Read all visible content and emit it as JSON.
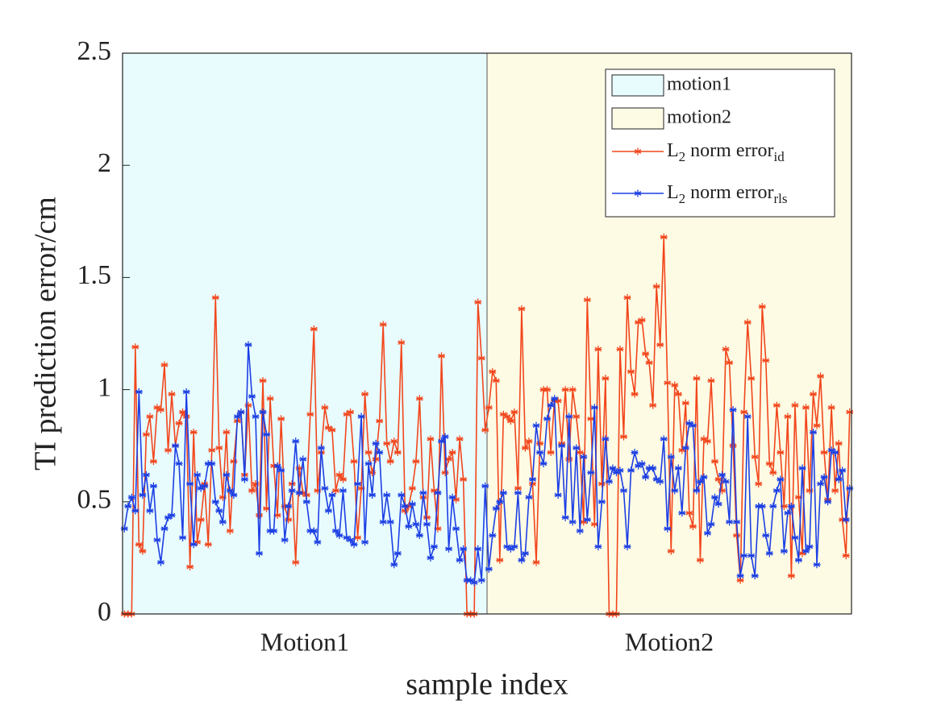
{
  "chart_data": {
    "type": "line",
    "ylabel": "TI prediction error/cm",
    "xlabel": "sample index",
    "x": [
      1,
      2,
      3,
      4,
      5,
      6,
      7,
      8,
      9,
      10,
      11,
      12,
      13,
      14,
      15,
      16,
      17,
      18,
      19,
      20,
      21,
      22,
      23,
      24,
      25,
      26,
      27,
      28,
      29,
      30,
      31,
      32,
      33,
      34,
      35,
      36,
      37,
      38,
      39,
      40,
      41,
      42,
      43,
      44,
      45,
      46,
      47,
      48,
      49,
      50,
      51,
      52,
      53,
      54,
      55,
      56,
      57,
      58,
      59,
      60,
      61,
      62,
      63,
      64,
      65,
      66,
      67,
      68,
      69,
      70,
      71,
      72,
      73,
      74,
      75,
      76,
      77,
      78,
      79,
      80,
      81,
      82,
      83,
      84,
      85,
      86,
      87,
      88,
      89,
      90,
      91,
      92,
      93,
      94,
      95,
      96,
      97,
      98,
      99,
      100,
      101,
      102,
      103,
      104,
      105,
      106,
      107,
      108,
      109,
      110,
      111,
      112,
      113,
      114,
      115,
      116,
      117,
      118,
      119,
      120,
      121,
      122,
      123,
      124,
      125,
      126,
      127,
      128,
      129,
      130,
      131,
      132,
      133,
      134,
      135,
      136,
      137,
      138,
      139,
      140,
      141,
      142,
      143,
      144,
      145,
      146,
      147,
      148,
      149,
      150,
      151,
      152,
      153,
      154,
      155,
      156,
      157,
      158,
      159,
      160,
      161,
      162,
      163,
      164,
      165,
      166,
      167,
      168,
      169,
      170,
      171,
      172,
      173,
      174,
      175,
      176,
      177,
      178,
      179,
      180,
      181,
      182,
      183,
      184,
      185,
      186,
      187,
      188,
      189,
      190,
      191,
      192,
      193,
      194,
      195,
      196,
      197,
      198,
      199,
      200
    ],
    "xlim": [
      0.5,
      200.5
    ],
    "ylim": [
      0,
      2.5
    ],
    "yticks": [
      0,
      0.5,
      1,
      1.5,
      2,
      2.5
    ],
    "legend": "upper right",
    "regions": [
      {
        "name": "motion1",
        "label": "Motion1",
        "color": "#e8fcfe",
        "x": [
          0.5,
          100.5
        ]
      },
      {
        "name": "motion2",
        "label": "Motion2",
        "color": "#fdfbe4",
        "x": [
          100.5,
          200.5
        ]
      }
    ],
    "series": [
      {
        "name": [
          "L",
          "2",
          " norm error",
          "id"
        ],
        "color": "#f2461c",
        "values": [
          0,
          0,
          0,
          1.19,
          0.31,
          0.28,
          0.8,
          0.88,
          0.68,
          0.92,
          0.91,
          1.11,
          0.73,
          0.98,
          0.75,
          0.85,
          0.9,
          0.88,
          0.21,
          0.81,
          0.32,
          0.42,
          0.58,
          0.31,
          0.73,
          1.41,
          0.74,
          0.52,
          0.81,
          0.37,
          0.68,
          0.86,
          0.9,
          0.62,
          0.93,
          0.55,
          0.58,
          0.44,
          1.04,
          0.47,
          0.96,
          0.66,
          0.44,
          0.87,
          0.48,
          0.42,
          0.58,
          0.23,
          0.65,
          0.54,
          0.53,
          0.89,
          1.27,
          0.55,
          0.72,
          0.92,
          0.83,
          0.82,
          0.55,
          0.62,
          0.6,
          0.89,
          0.9,
          0.68,
          0.34,
          0.56,
          0.98,
          0.72,
          0.63,
          0.69,
          0.86,
          1.29,
          0.76,
          0.68,
          0.77,
          0.72,
          1.21,
          0.46,
          0.48,
          0.56,
          0.68,
          0.96,
          0.52,
          0.43,
          0.78,
          0.55,
          0.38,
          1.15,
          0.63,
          0.69,
          0.72,
          0.51,
          0.78,
          0.6,
          0,
          0,
          0,
          1.39,
          1.14,
          0.82,
          0.92,
          1.08,
          1.04,
          0.24,
          0.89,
          0.88,
          0.86,
          0.9,
          0.56,
          1.36,
          0.74,
          0.77,
          0.58,
          0.23,
          0.76,
          1.0,
          1.0,
          0.72,
          0.95,
          0.95,
          0.76,
          1.0,
          0.69,
          1.0,
          0.88,
          0.72,
          0.41,
          1.4,
          0.87,
          0.4,
          1.18,
          0.58,
          1.05,
          0,
          0,
          0,
          1.18,
          0.79,
          1.41,
          1.08,
          0.98,
          1.3,
          1.31,
          1.16,
          1.12,
          0.93,
          1.46,
          1.2,
          1.68,
          1.03,
          0.28,
          1.02,
          0.98,
          0.73,
          0.94,
          0.45,
          0.39,
          1.05,
          0.24,
          0.78,
          0.77,
          1.04,
          0.68,
          0.6,
          0.55,
          1.18,
          1.12,
          0.75,
          0.35,
          0.15,
          0.9,
          1.3,
          1.05,
          0.7,
          0.58,
          1.37,
          1.13,
          0.67,
          0.63,
          0.93,
          0.72,
          0.48,
          0.88,
          0.17,
          0.93,
          0.52,
          0.27,
          0.92,
          0.55,
          0.98,
          0.84,
          1.06,
          0.72,
          0.51,
          0.92,
          0.55,
          0.76,
          0.42,
          0.26,
          0.9
        ]
      },
      {
        "name": [
          "L",
          "2",
          " norm error",
          "rls"
        ],
        "color": "#1c3fe4",
        "values": [
          0.38,
          0.48,
          0.52,
          0.46,
          0.99,
          0.53,
          0.62,
          0.46,
          0.57,
          0.33,
          0.23,
          0.38,
          0.43,
          0.44,
          0.75,
          0.67,
          0.34,
          0.99,
          0.58,
          0.31,
          0.62,
          0.56,
          0.57,
          0.67,
          0.67,
          0.5,
          0.46,
          0.41,
          0.62,
          0.55,
          0.53,
          0.88,
          0.9,
          0.6,
          1.2,
          0.97,
          0.88,
          0.27,
          0.9,
          0.8,
          0.37,
          0.37,
          0.66,
          0.64,
          0.33,
          0.48,
          0.55,
          0.77,
          0.54,
          0.69,
          0.5,
          0.37,
          0.37,
          0.32,
          0.74,
          0.56,
          0.46,
          0.53,
          0.37,
          0.35,
          0.55,
          0.34,
          0.33,
          0.31,
          0.58,
          0.88,
          0.32,
          0.67,
          0.53,
          0.76,
          0.72,
          0.41,
          0.53,
          0.41,
          0.22,
          0.27,
          0.53,
          0.48,
          0.39,
          0.49,
          0.4,
          0.35,
          0.54,
          0.4,
          0.25,
          0.3,
          0.54,
          0.77,
          0.79,
          0.29,
          0.52,
          0.38,
          0.24,
          0.29,
          0.15,
          0.15,
          0.14,
          0.29,
          0.15,
          0.57,
          0.2,
          0.35,
          0.47,
          0.5,
          0.54,
          0.3,
          0.29,
          0.3,
          0.54,
          0.24,
          0.27,
          0.52,
          0.6,
          0.84,
          0.72,
          0.67,
          0.87,
          0.93,
          0.96,
          0.53,
          0.75,
          0.43,
          0.88,
          0.41,
          0.74,
          0.37,
          0.7,
          0.42,
          0.63,
          0.92,
          0.3,
          0.5,
          0.78,
          0.59,
          0.65,
          0.63,
          0.64,
          0.55,
          0.3,
          0.64,
          0.72,
          0.66,
          0.67,
          0.61,
          0.65,
          0.65,
          0.6,
          0.59,
          0.78,
          0.38,
          0.7,
          0.55,
          0.65,
          0.45,
          0.74,
          0.85,
          0.84,
          0.55,
          0.59,
          0.61,
          0.36,
          0.4,
          0.52,
          0.49,
          0.62,
          0.59,
          0.41,
          0.91,
          0.41,
          0.17,
          0.26,
          0.88,
          0.26,
          0.17,
          0.48,
          0.48,
          0.35,
          0.27,
          0.48,
          0.55,
          0.6,
          0.28,
          0.45,
          0.48,
          0.34,
          0.24,
          0.65,
          0.28,
          0.3,
          0.81,
          0.22,
          0.58,
          0.61,
          0.5,
          0.73,
          0.72,
          0.6,
          0.64,
          0.42,
          0.56
        ]
      }
    ]
  }
}
